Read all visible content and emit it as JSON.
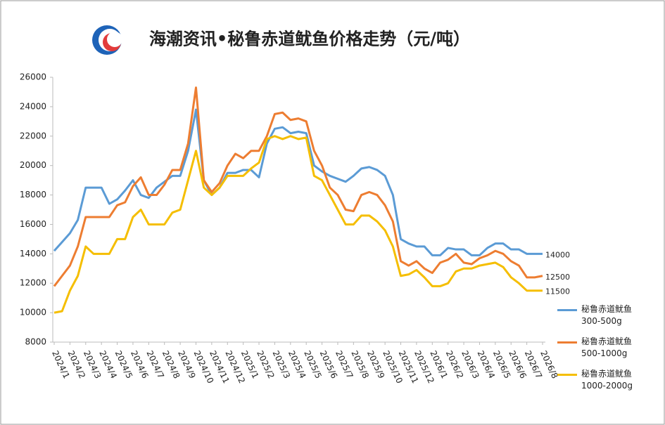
{
  "chart_data": {
    "type": "line",
    "title": "海潮资讯•秘鲁赤道鱿鱼价格走势（元/吨）",
    "x": [
      0,
      0.5,
      1,
      1.5,
      2,
      2.5,
      3,
      3.5,
      4,
      4.5,
      5,
      5.5,
      6,
      6.5,
      7,
      7.5,
      8,
      8.5,
      9,
      9.5,
      10,
      10.5,
      11,
      11.5,
      12,
      12.5,
      13,
      13.5,
      14,
      14.5,
      15,
      15.5,
      16,
      16.5,
      17,
      17.5,
      18,
      18.5,
      19,
      19.5,
      20,
      20.5,
      21,
      21.5,
      22,
      22.5,
      23,
      23.5,
      24,
      24.5,
      25,
      25.5,
      26,
      26.5,
      27,
      27.5,
      28,
      28.5,
      29,
      29.5,
      30,
      30.5,
      31
    ],
    "xlim": [
      0,
      31
    ],
    "xticks": [
      {
        "value": 0,
        "label": "2024/1"
      },
      {
        "value": 1,
        "label": "2024/2"
      },
      {
        "value": 2,
        "label": "2024/3"
      },
      {
        "value": 3,
        "label": "2024/4"
      },
      {
        "value": 4,
        "label": "2024/5"
      },
      {
        "value": 5,
        "label": "2024/6"
      },
      {
        "value": 6,
        "label": "2024/7"
      },
      {
        "value": 7,
        "label": "2024/8"
      },
      {
        "value": 8,
        "label": "2024/9"
      },
      {
        "value": 9,
        "label": "2024/10"
      },
      {
        "value": 10,
        "label": "2024/11"
      },
      {
        "value": 11,
        "label": "2024/12"
      },
      {
        "value": 12,
        "label": "2025/1"
      },
      {
        "value": 13,
        "label": "2025/2"
      },
      {
        "value": 14,
        "label": "2025/3"
      },
      {
        "value": 15,
        "label": "2025/4"
      },
      {
        "value": 16,
        "label": "2025/5"
      },
      {
        "value": 17,
        "label": "2025/6"
      },
      {
        "value": 18,
        "label": "2025/7"
      },
      {
        "value": 19,
        "label": "2025/8"
      },
      {
        "value": 20,
        "label": "2025/9"
      },
      {
        "value": 21,
        "label": "2025/10"
      },
      {
        "value": 22,
        "label": "2025/11"
      },
      {
        "value": 23,
        "label": "2025/12"
      },
      {
        "value": 24,
        "label": "2026/1"
      },
      {
        "value": 25,
        "label": "2026/2"
      },
      {
        "value": 26,
        "label": "2026/3"
      },
      {
        "value": 27,
        "label": "2026/4"
      },
      {
        "value": 28,
        "label": "2026/5"
      },
      {
        "value": 29,
        "label": "2026/6"
      },
      {
        "value": 30,
        "label": "2026/7"
      },
      {
        "value": 31,
        "label": "2026/8"
      }
    ],
    "ylim": [
      8000,
      26000
    ],
    "yticks": [
      8000,
      10000,
      12000,
      14000,
      16000,
      18000,
      20000,
      22000,
      24000,
      26000
    ],
    "grid": false,
    "label_last": true,
    "series": [
      {
        "name": "秘鲁赤道鱿鱼\n300-500g",
        "color": "#5b9bd5",
        "values": [
          14200,
          14800,
          15400,
          16300,
          18500,
          18500,
          18500,
          17400,
          17700,
          18300,
          19000,
          18000,
          17800,
          18500,
          18900,
          19300,
          19300,
          21000,
          23800,
          19000,
          18000,
          18500,
          19500,
          19500,
          19700,
          19700,
          19200,
          21500,
          22500,
          22600,
          22200,
          22300,
          22200,
          20000,
          19600,
          19300,
          19100,
          18900,
          19300,
          19800,
          19900,
          19700,
          19300,
          18000,
          15000,
          14700,
          14500,
          14500,
          13900,
          13900,
          14400,
          14300,
          14300,
          13900,
          13900,
          14400,
          14700,
          14700,
          14300,
          14300,
          14000,
          14000,
          14000
        ]
      },
      {
        "name": "秘鲁赤道鱿鱼\n500-1000g",
        "color": "#ed7d31",
        "values": [
          11800,
          12500,
          13200,
          14500,
          16500,
          16500,
          16500,
          16500,
          17300,
          17500,
          18600,
          19200,
          18000,
          18000,
          18700,
          19700,
          19700,
          21500,
          25300,
          19000,
          18200,
          18800,
          20000,
          20800,
          20500,
          21000,
          21000,
          22000,
          23500,
          23600,
          23100,
          23200,
          23000,
          21000,
          20000,
          18500,
          18000,
          17000,
          16900,
          18000,
          18200,
          18000,
          17300,
          16200,
          13500,
          13200,
          13500,
          13000,
          12700,
          13400,
          13600,
          14000,
          13400,
          13300,
          13700,
          13900,
          14200,
          14000,
          13500,
          13200,
          12400,
          12400,
          12500
        ]
      },
      {
        "name": "秘鲁赤道鱿鱼\n1000-2000g",
        "color": "#f5be00",
        "values": [
          10000,
          10100,
          11500,
          12500,
          14500,
          14000,
          14000,
          14000,
          15000,
          15000,
          16500,
          17000,
          16000,
          16000,
          16000,
          16800,
          17000,
          19000,
          21000,
          18500,
          18000,
          18500,
          19300,
          19300,
          19300,
          19800,
          20200,
          21800,
          22000,
          21800,
          22000,
          21800,
          21900,
          19300,
          19000,
          18000,
          17000,
          16000,
          16000,
          16600,
          16600,
          16200,
          15600,
          14500,
          12500,
          12600,
          12900,
          12400,
          11800,
          11800,
          12000,
          12800,
          13000,
          13000,
          13200,
          13300,
          13400,
          13100,
          12400,
          12000,
          11500,
          11500,
          11500
        ]
      }
    ]
  }
}
